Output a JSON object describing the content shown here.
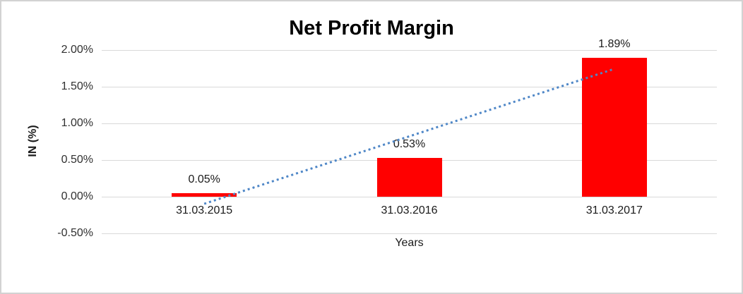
{
  "chart_data": {
    "type": "bar",
    "title": "Net Profit Margin",
    "xlabel": "Years",
    "ylabel": "IN (%)",
    "categories": [
      "31.03.2015",
      "31.03.2016",
      "31.03.2017"
    ],
    "values": [
      0.05,
      0.53,
      1.89
    ],
    "data_labels": [
      "0.05%",
      "0.53%",
      "1.89%"
    ],
    "yticks": [
      {
        "value": 2.0,
        "label": "2.00%"
      },
      {
        "value": 1.5,
        "label": "1.50%"
      },
      {
        "value": 1.0,
        "label": "1.00%"
      },
      {
        "value": 0.5,
        "label": "0.50%"
      },
      {
        "value": 0.0,
        "label": "0.00%"
      },
      {
        "value": -0.5,
        "label": "-0.50%"
      }
    ],
    "ylim": [
      -0.5,
      2.0
    ],
    "grid": true,
    "legend": "none",
    "bar_color": "#ff0000",
    "gridline_color": "#d9d9d9",
    "trendline": {
      "type": "linear",
      "style": "dotted",
      "color": "#4f87c7"
    }
  }
}
